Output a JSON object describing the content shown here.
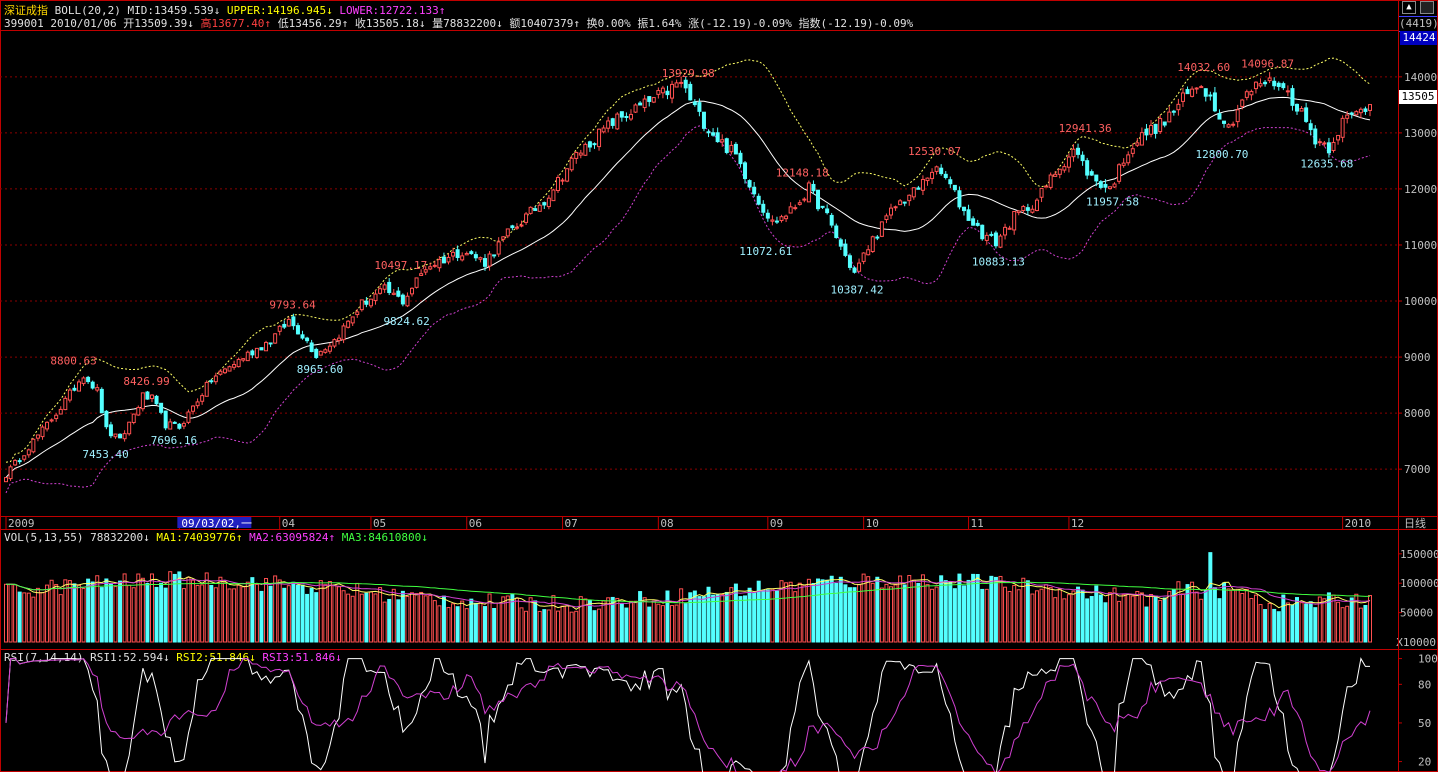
{
  "header": {
    "title": "深证成指",
    "indicator": "BOLL(20,2)",
    "mid_label": "MID:13459.539↓",
    "upper_label": "UPPER:14196.945↓",
    "lower_label": "LOWER:12722.133↑",
    "code_date": "399001 2010/01/06",
    "open": "开13509.39↓",
    "high": "高13677.40↑",
    "low": "低13456.29↑",
    "close": "收13505.18↓",
    "volume": "量78832200↓",
    "amount": "额10407379↑",
    "turnover": "换0.00%",
    "amplitude": "振1.64%",
    "change": "涨(-12.19)-0.09%",
    "index_change": "指数(-12.19)-0.09%"
  },
  "right_panel": {
    "box_top": "(4419)",
    "box_bottom": "14424",
    "current_price": "13505",
    "arrow_icons": [
      "up-arrow-icon",
      "square-icon"
    ]
  },
  "time_axis": {
    "labels": [
      "2009",
      "09/03/02,一",
      "04",
      "05",
      "06",
      "07",
      "08",
      "09",
      "10",
      "11",
      "12",
      "2010"
    ],
    "period": "日线"
  },
  "vol_header": {
    "label": "VOL(5,13,55)",
    "value": "78832200↓",
    "ma1": "MA1:74039776↑",
    "ma2": "MA2:63095824↑",
    "ma3": "MA3:84610800↓",
    "unit": "X10000"
  },
  "rsi_header": {
    "label": "RSI(7,14,14)",
    "rsi1": "RSI1:52.594↓",
    "rsi2": "RSI2:51.846↓",
    "rsi3": "RSI3:51.846↓"
  },
  "chart_data": [
    {
      "type": "candlestick",
      "title": "深证成指 BOLL(20,2)",
      "ylim": [
        6200,
        14800
      ],
      "yticks": [
        7000,
        8000,
        9000,
        10000,
        11000,
        12000,
        13000,
        14000
      ],
      "start_date": "2009-01-05",
      "end_date": "2010-01-06",
      "anchors": [
        {
          "i": 0,
          "p": 6900
        },
        {
          "i": 12,
          "p": 8100
        },
        {
          "i": 17,
          "p": 8700
        },
        {
          "i": 20,
          "p": 8400
        },
        {
          "i": 22,
          "p": 7700
        },
        {
          "i": 25,
          "p": 7500
        },
        {
          "i": 30,
          "p": 8300
        },
        {
          "i": 32,
          "p": 8250
        },
        {
          "i": 35,
          "p": 7800
        },
        {
          "i": 38,
          "p": 7750
        },
        {
          "i": 45,
          "p": 8600
        },
        {
          "i": 52,
          "p": 9000
        },
        {
          "i": 58,
          "p": 9300
        },
        {
          "i": 62,
          "p": 9650
        },
        {
          "i": 65,
          "p": 9400
        },
        {
          "i": 68,
          "p": 9050
        },
        {
          "i": 72,
          "p": 9300
        },
        {
          "i": 78,
          "p": 9950
        },
        {
          "i": 83,
          "p": 10200
        },
        {
          "i": 87,
          "p": 10000
        },
        {
          "i": 92,
          "p": 10600
        },
        {
          "i": 100,
          "p": 10900
        },
        {
          "i": 105,
          "p": 10700
        },
        {
          "i": 110,
          "p": 11200
        },
        {
          "i": 118,
          "p": 11800
        },
        {
          "i": 125,
          "p": 12600
        },
        {
          "i": 133,
          "p": 13200
        },
        {
          "i": 142,
          "p": 13600
        },
        {
          "i": 148,
          "p": 13900
        },
        {
          "i": 152,
          "p": 13300
        },
        {
          "i": 156,
          "p": 12900
        },
        {
          "i": 160,
          "p": 12600
        },
        {
          "i": 165,
          "p": 11800
        },
        {
          "i": 168,
          "p": 11400
        },
        {
          "i": 172,
          "p": 11600
        },
        {
          "i": 176,
          "p": 12000
        },
        {
          "i": 180,
          "p": 11500
        },
        {
          "i": 184,
          "p": 10800
        },
        {
          "i": 186,
          "p": 10500
        },
        {
          "i": 190,
          "p": 11100
        },
        {
          "i": 195,
          "p": 11700
        },
        {
          "i": 200,
          "p": 12000
        },
        {
          "i": 203,
          "p": 12350
        },
        {
          "i": 206,
          "p": 12200
        },
        {
          "i": 210,
          "p": 11600
        },
        {
          "i": 214,
          "p": 11200
        },
        {
          "i": 217,
          "p": 11050
        },
        {
          "i": 221,
          "p": 11500
        },
        {
          "i": 226,
          "p": 11800
        },
        {
          "i": 230,
          "p": 12300
        },
        {
          "i": 234,
          "p": 12700
        },
        {
          "i": 238,
          "p": 12200
        },
        {
          "i": 242,
          "p": 12000
        },
        {
          "i": 246,
          "p": 12700
        },
        {
          "i": 250,
          "p": 13000
        },
        {
          "i": 254,
          "p": 13200
        },
        {
          "i": 258,
          "p": 13600
        },
        {
          "i": 262,
          "p": 13900
        },
        {
          "i": 265,
          "p": 13500
        },
        {
          "i": 268,
          "p": 13100
        },
        {
          "i": 271,
          "p": 13600
        },
        {
          "i": 275,
          "p": 13900
        },
        {
          "i": 279,
          "p": 13900
        },
        {
          "i": 283,
          "p": 13500
        },
        {
          "i": 287,
          "p": 12900
        },
        {
          "i": 290,
          "p": 12750
        },
        {
          "i": 293,
          "p": 13200
        },
        {
          "i": 297,
          "p": 13400
        },
        {
          "i": 299,
          "p": 13505
        }
      ],
      "annotations": [
        {
          "text": "8800.63",
          "i": 15,
          "p": 8800,
          "kind": "high"
        },
        {
          "text": "7453.40",
          "i": 22,
          "p": 7453,
          "kind": "low"
        },
        {
          "text": "8426.99",
          "i": 31,
          "p": 8427,
          "kind": "high"
        },
        {
          "text": "7696.16",
          "i": 37,
          "p": 7696,
          "kind": "low"
        },
        {
          "text": "9793.64",
          "i": 63,
          "p": 9794,
          "kind": "high"
        },
        {
          "text": "8965.60",
          "i": 69,
          "p": 8966,
          "kind": "low"
        },
        {
          "text": "10497.17",
          "i": 86,
          "p": 10497,
          "kind": "high"
        },
        {
          "text": "9824.62",
          "i": 88,
          "p": 9825,
          "kind": "low"
        },
        {
          "text": "13929.98",
          "i": 149,
          "p": 13930,
          "kind": "high"
        },
        {
          "text": "11072.61",
          "i": 166,
          "p": 11073,
          "kind": "low"
        },
        {
          "text": "12148.18",
          "i": 174,
          "p": 12148,
          "kind": "high"
        },
        {
          "text": "10387.42",
          "i": 186,
          "p": 10387,
          "kind": "low"
        },
        {
          "text": "12530.07",
          "i": 203,
          "p": 12530,
          "kind": "high"
        },
        {
          "text": "10883.13",
          "i": 217,
          "p": 10883,
          "kind": "low"
        },
        {
          "text": "12941.36",
          "i": 236,
          "p": 12941,
          "kind": "high"
        },
        {
          "text": "11957.58",
          "i": 242,
          "p": 11958,
          "kind": "low"
        },
        {
          "text": "14032.60",
          "i": 262,
          "p": 14033,
          "kind": "high"
        },
        {
          "text": "12800.70",
          "i": 266,
          "p": 12801,
          "kind": "low"
        },
        {
          "text": "14096.87",
          "i": 276,
          "p": 14097,
          "kind": "high"
        },
        {
          "text": "12635.68",
          "i": 289,
          "p": 12636,
          "kind": "low"
        }
      ],
      "colors": {
        "up": "#ff5050",
        "down": "#54ffff",
        "mid": "#ffffff",
        "upper": "#ffff66",
        "lower": "#d040d0",
        "grid": "#8b0000"
      }
    },
    {
      "type": "bar",
      "title": "VOL(5,13,55)",
      "ylim": [
        0,
        165000
      ],
      "yticks": [
        50000,
        100000,
        150000
      ],
      "unit": "X10000",
      "colors": {
        "up": "#ff5050",
        "down": "#54ffff",
        "ma1": "#ffff66",
        "ma2": "#d040d0",
        "ma3": "#40ff40"
      }
    },
    {
      "type": "line",
      "title": "RSI(7,14,14)",
      "ylim": [
        15,
        102
      ],
      "yticks": [
        20,
        50,
        80,
        100
      ],
      "colors": {
        "rsi1": "#ffffff",
        "rsi2": "#d040d0"
      }
    }
  ]
}
